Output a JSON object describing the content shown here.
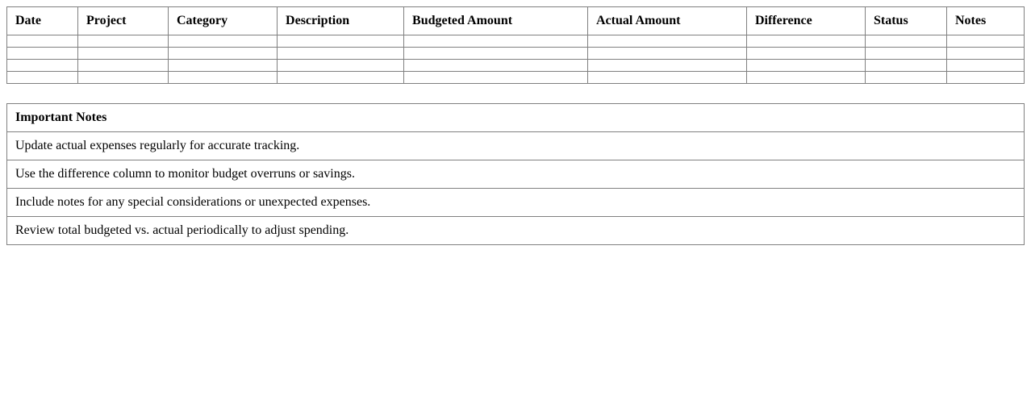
{
  "budget_table": {
    "headers": [
      "Date",
      "Project",
      "Category",
      "Description",
      "Budgeted Amount",
      "Actual Amount",
      "Difference",
      "Status",
      "Notes"
    ],
    "empty_row_count": 4
  },
  "notes": {
    "title": "Important Notes",
    "items": [
      "Update actual expenses regularly for accurate tracking.",
      "Use the difference column to monitor budget overruns or savings.",
      "Include notes for any special considerations or unexpected expenses.",
      "Review total budgeted vs. actual periodically to adjust spending."
    ]
  },
  "colors": {
    "border": "#808080",
    "text": "#000000",
    "background": "#ffffff"
  }
}
